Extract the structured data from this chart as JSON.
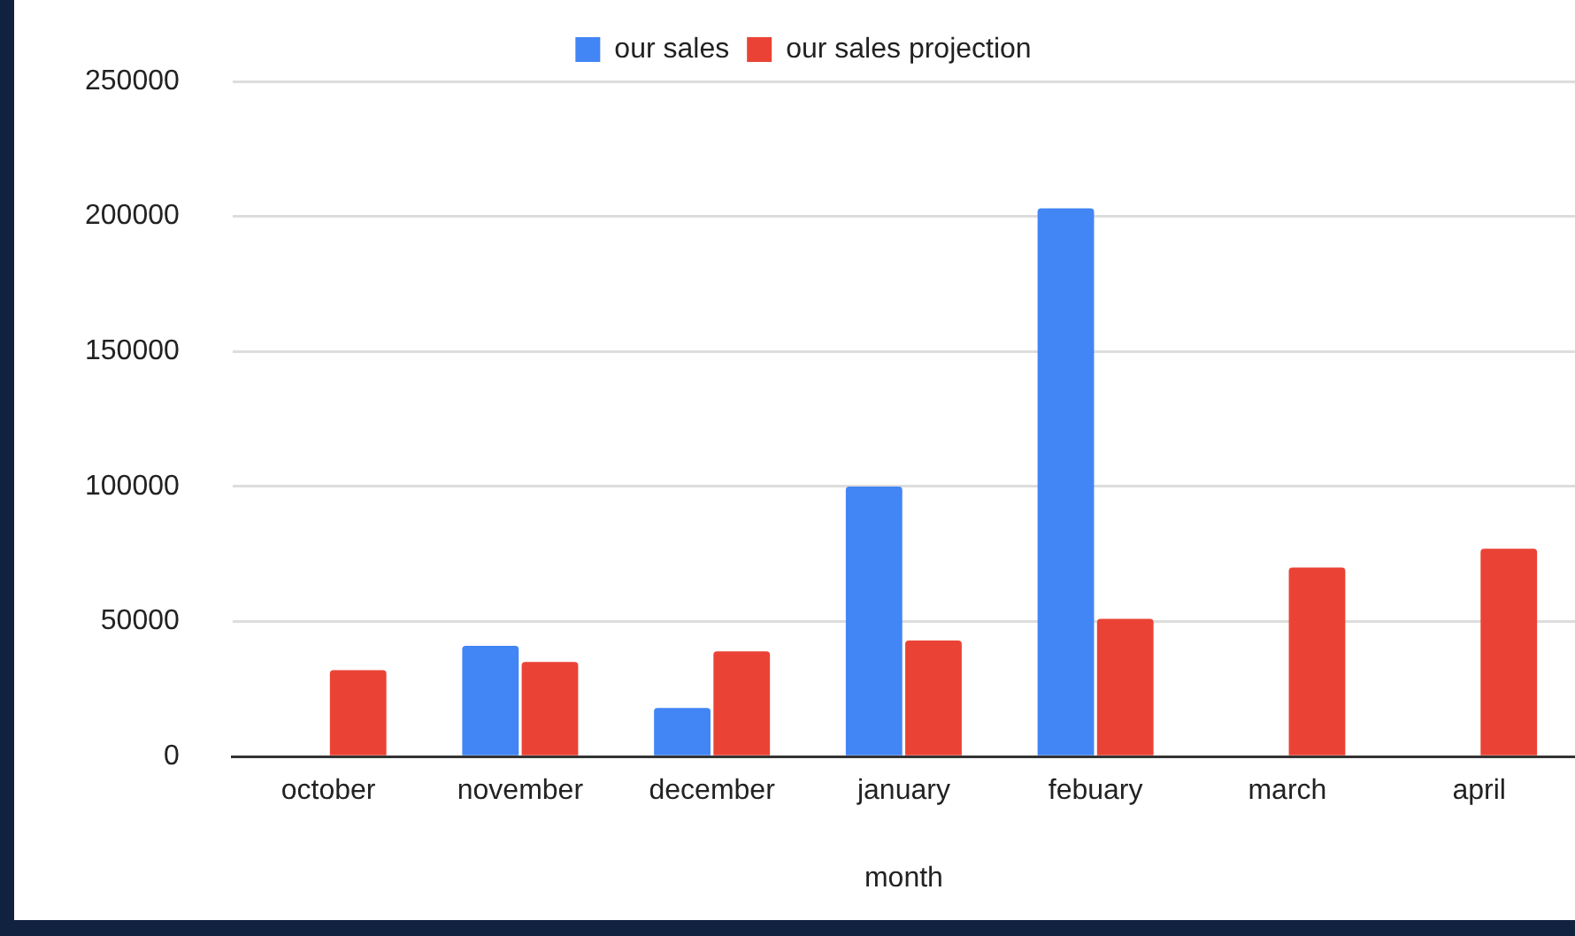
{
  "chart_data": {
    "type": "bar",
    "xlabel": "month",
    "categories": [
      "october",
      "november",
      "december",
      "january",
      "febuary",
      "march",
      "april"
    ],
    "series": [
      {
        "name": "our sales",
        "color": "#4285f4",
        "values": [
          null,
          41000,
          18000,
          100000,
          203000,
          null,
          null
        ]
      },
      {
        "name": "our sales projection",
        "color": "#ea4335",
        "values": [
          32000,
          35000,
          39000,
          43000,
          51000,
          70000,
          77000
        ]
      }
    ],
    "ylim": [
      0,
      250000
    ],
    "yticks": [
      0,
      50000,
      100000,
      150000,
      200000,
      250000
    ],
    "grid": "y",
    "legend": "top"
  }
}
